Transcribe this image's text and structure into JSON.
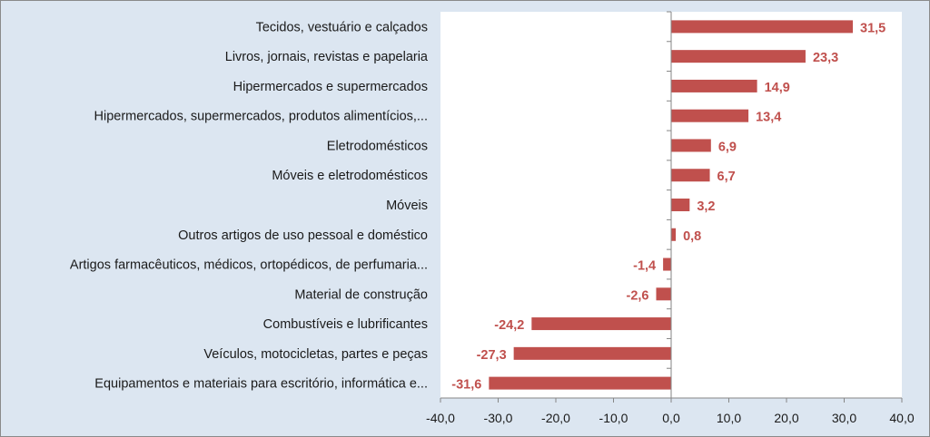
{
  "chart_data": {
    "type": "bar",
    "orientation": "horizontal",
    "categories": [
      "Tecidos, vestuário e calçados",
      "Livros, jornais, revistas e papelaria",
      "Hipermercados e supermercados",
      "Hipermercados, supermercados, produtos alimentícios,...",
      "Eletrodomésticos",
      "Móveis e eletrodomésticos",
      "Móveis",
      "Outros artigos de uso pessoal e doméstico",
      "Artigos farmacêuticos, médicos, ortopédicos, de perfumaria...",
      "Material de construção",
      "Combustíveis e lubrificantes",
      "Veículos, motocicletas, partes e peças",
      "Equipamentos e materiais para escritório, informática e..."
    ],
    "values": [
      31.5,
      23.3,
      14.9,
      13.4,
      6.9,
      6.7,
      3.2,
      0.8,
      -1.4,
      -2.6,
      -24.2,
      -27.3,
      -31.6
    ],
    "data_labels": [
      "31,5",
      "23,3",
      "14,9",
      "13,4",
      "6,9",
      "6,7",
      "3,2",
      "0,8",
      "-1,4",
      "-2,6",
      "-24,2",
      "-27,3",
      "-31,6"
    ],
    "xlim": [
      -40,
      40
    ],
    "ticks": [
      -40,
      -30,
      -20,
      -10,
      0,
      10,
      20,
      30,
      40
    ],
    "tick_labels": [
      "-40,0",
      "-30,0",
      "-20,0",
      "-10,0",
      "0,0",
      "10,0",
      "20,0",
      "30,0",
      "40,0"
    ],
    "title": "",
    "xlabel": "",
    "ylabel": "",
    "grid": false,
    "legend": "none",
    "colors": {
      "bar": "#c0504d",
      "label": "#c0504d",
      "plot_background": "#ffffff",
      "chart_background": "#dce6f1",
      "axis": "#868686"
    }
  }
}
